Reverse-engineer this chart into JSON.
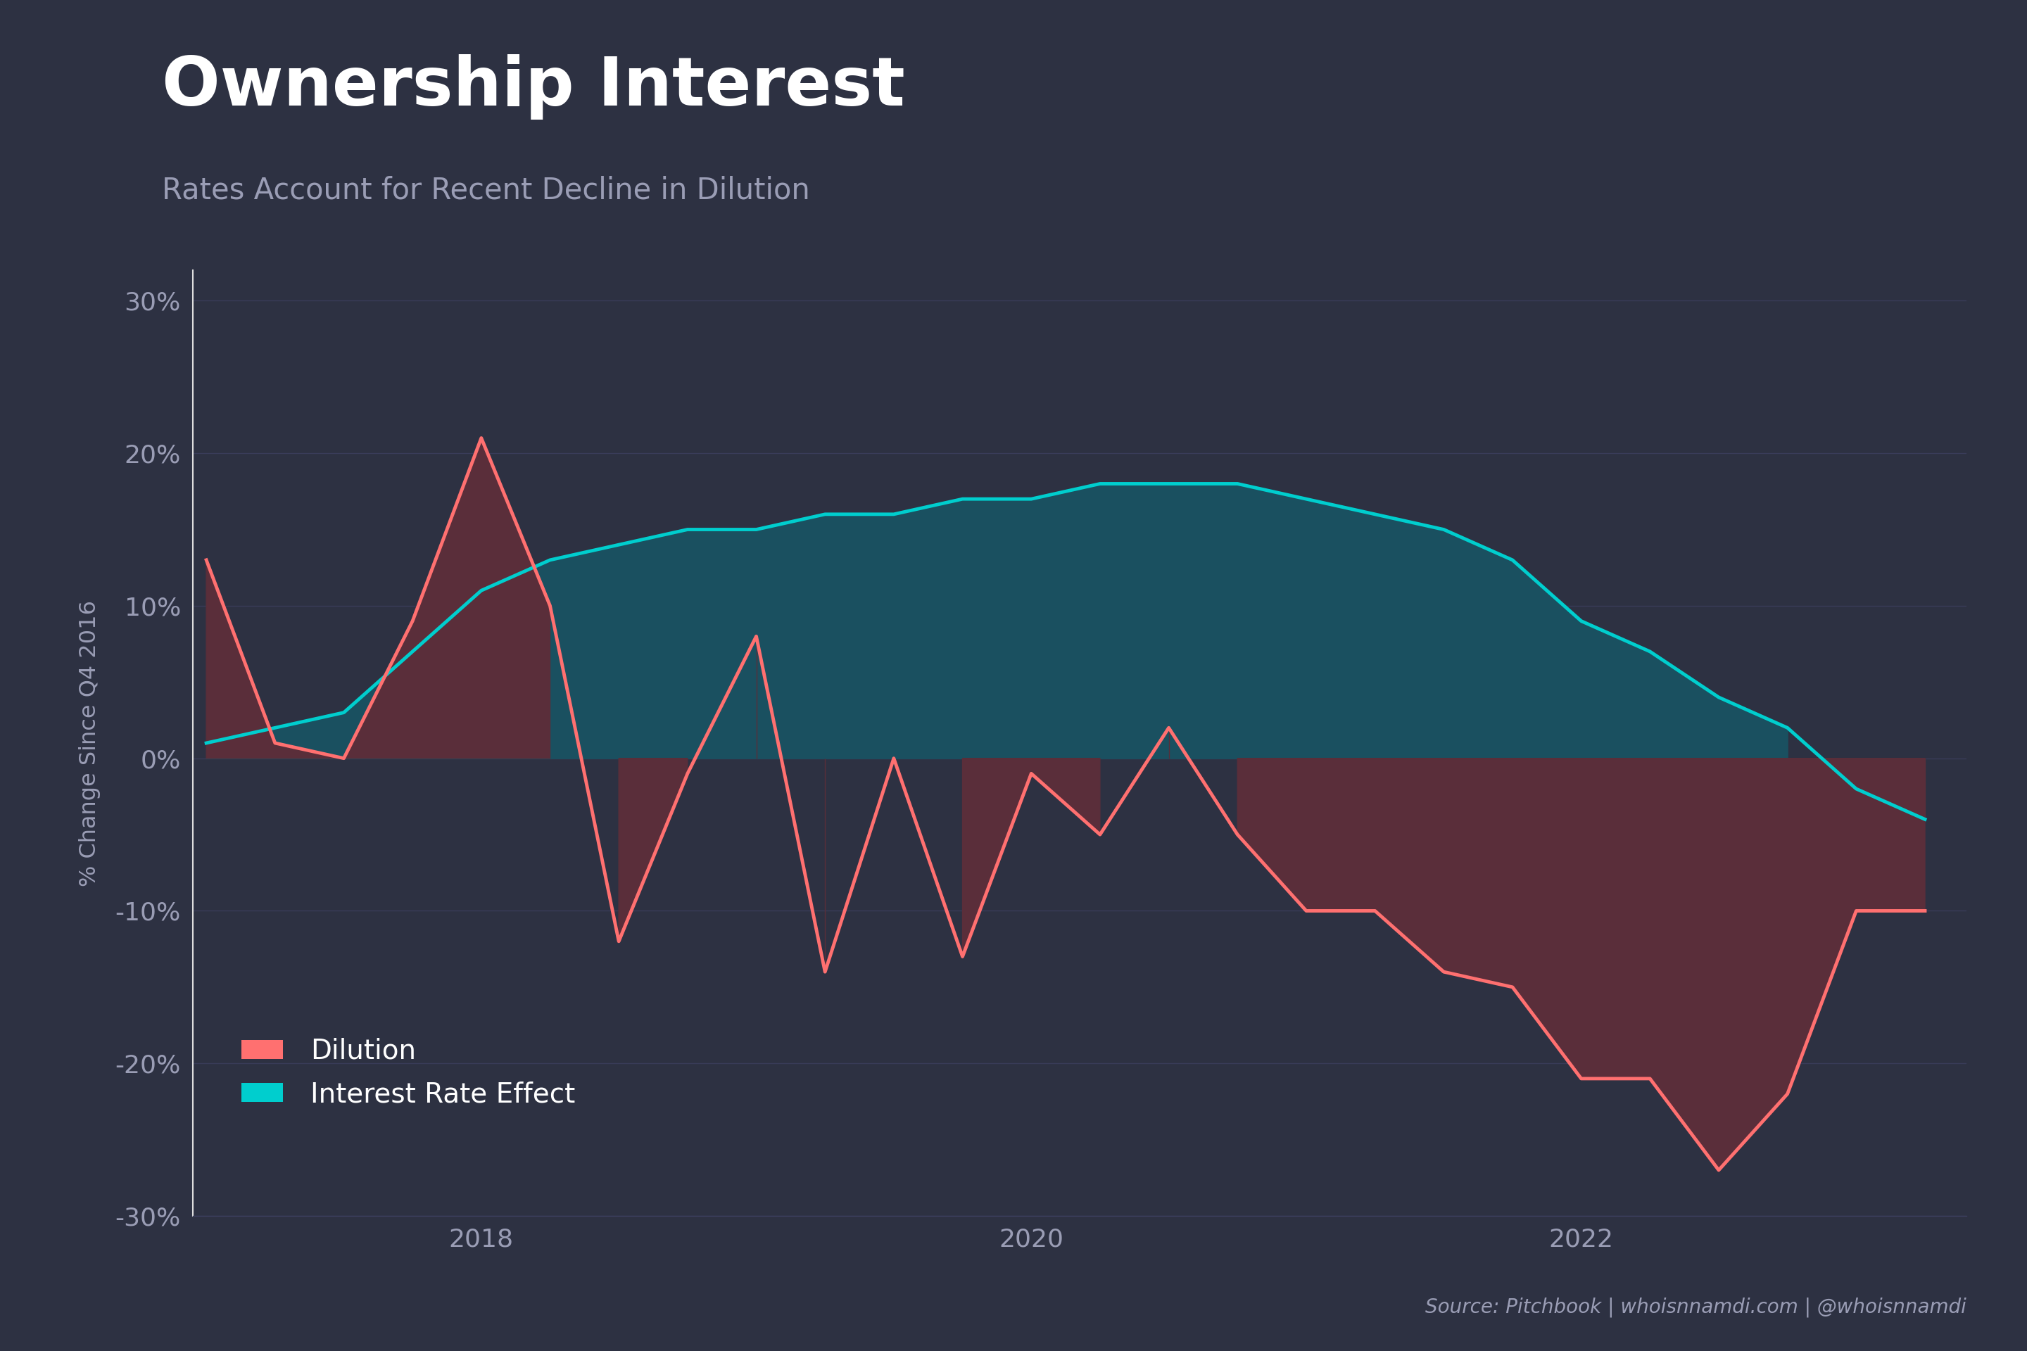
{
  "title": "Ownership Interest",
  "subtitle": "Rates Account for Recent Decline in Dilution",
  "ylabel": "% Change Since Q4 2016",
  "source": "Source: Pitchbook | whoisnnamdi.com | @whoisnnamdi",
  "background_color": "#2d3142",
  "plot_bg_color": "#2d3142",
  "grid_color": "#3d4060",
  "title_color": "#ffffff",
  "subtitle_color": "#9a9db5",
  "axis_color": "#9a9db5",
  "tick_color": "#9a9db5",
  "dilution_line_color": "#ff7070",
  "ir_line_color": "#00cece",
  "dilution_fill_above": "#5a2e3a",
  "dilution_fill_below": "#5a2e3a",
  "ir_fill_color": "#1a5060",
  "ylim": [
    -0.3,
    0.32
  ],
  "x_values": [
    2017.0,
    2017.25,
    2017.5,
    2017.75,
    2018.0,
    2018.25,
    2018.5,
    2018.75,
    2019.0,
    2019.25,
    2019.5,
    2019.75,
    2020.0,
    2020.25,
    2020.5,
    2020.75,
    2021.0,
    2021.25,
    2021.5,
    2021.75,
    2022.0,
    2022.25,
    2022.5,
    2022.75,
    2023.0,
    2023.25
  ],
  "dilution": [
    0.13,
    0.01,
    0.0,
    0.09,
    0.21,
    0.1,
    -0.12,
    -0.01,
    0.08,
    -0.14,
    0.0,
    -0.13,
    -0.01,
    -0.05,
    0.02,
    -0.05,
    -0.1,
    -0.1,
    -0.14,
    -0.15,
    -0.21,
    -0.21,
    -0.27,
    -0.22,
    -0.1,
    -0.1
  ],
  "interest_rate": [
    0.01,
    0.02,
    0.03,
    0.07,
    0.11,
    0.13,
    0.14,
    0.15,
    0.15,
    0.16,
    0.16,
    0.17,
    0.17,
    0.18,
    0.18,
    0.18,
    0.17,
    0.16,
    0.15,
    0.13,
    0.09,
    0.07,
    0.04,
    0.02,
    -0.02,
    -0.04
  ]
}
